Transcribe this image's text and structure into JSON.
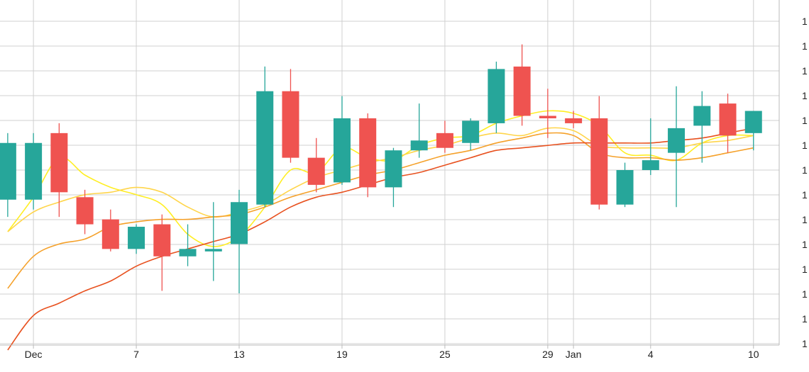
{
  "chart_data": {
    "type": "candlestick",
    "title": "",
    "xlabel": "",
    "ylabel": "",
    "grid": true,
    "y_tick_labels": [
      "1",
      "1",
      "1",
      "1",
      "1",
      "1",
      "1",
      "1",
      "1",
      "1",
      "1",
      "1",
      "1",
      "1"
    ],
    "x_tick_labels": [
      {
        "label": "Dec",
        "x": 1
      },
      {
        "label": "7",
        "x": 5
      },
      {
        "label": "13",
        "x": 9
      },
      {
        "label": "19",
        "x": 13
      },
      {
        "label": "25",
        "x": 17
      },
      {
        "label": "29",
        "x": 21
      },
      {
        "label": "Jan",
        "x": 22
      },
      {
        "label": "4",
        "x": 25
      },
      {
        "label": "10",
        "x": 29
      }
    ],
    "x_range": [
      -0.3,
      30.0
    ],
    "y_range": [
      0.0,
      14.0
    ],
    "candles": [
      {
        "x": 0,
        "open": 5.9,
        "high": 8.6,
        "low": 5.2,
        "close": 8.2
      },
      {
        "x": 1,
        "open": 5.9,
        "high": 8.6,
        "low": 5.5,
        "close": 8.2
      },
      {
        "x": 2,
        "open": 8.6,
        "high": 9.0,
        "low": 5.2,
        "close": 6.2
      },
      {
        "x": 3,
        "open": 6.0,
        "high": 6.3,
        "low": 4.5,
        "close": 4.9
      },
      {
        "x": 4,
        "open": 5.1,
        "high": 5.5,
        "low": 3.8,
        "close": 3.9
      },
      {
        "x": 5,
        "open": 3.9,
        "high": 4.9,
        "low": 3.7,
        "close": 4.8
      },
      {
        "x": 6,
        "open": 4.9,
        "high": 5.3,
        "low": 2.2,
        "close": 3.6
      },
      {
        "x": 7,
        "open": 3.6,
        "high": 4.9,
        "low": 3.2,
        "close": 3.9
      },
      {
        "x": 8,
        "open": 3.8,
        "high": 5.8,
        "low": 2.6,
        "close": 3.9
      },
      {
        "x": 9,
        "open": 4.1,
        "high": 6.3,
        "low": 2.1,
        "close": 5.8
      },
      {
        "x": 10,
        "open": 5.7,
        "high": 11.3,
        "low": 5.6,
        "close": 10.3
      },
      {
        "x": 11,
        "open": 10.3,
        "high": 11.2,
        "low": 7.4,
        "close": 7.6
      },
      {
        "x": 12,
        "open": 7.6,
        "high": 8.4,
        "low": 6.2,
        "close": 6.5
      },
      {
        "x": 13,
        "open": 6.6,
        "high": 10.1,
        "low": 6.5,
        "close": 9.2
      },
      {
        "x": 14,
        "open": 9.2,
        "high": 9.4,
        "low": 6.0,
        "close": 6.4
      },
      {
        "x": 15,
        "open": 6.4,
        "high": 8.0,
        "low": 5.6,
        "close": 7.9
      },
      {
        "x": 16,
        "open": 7.9,
        "high": 9.8,
        "low": 7.6,
        "close": 8.3
      },
      {
        "x": 17,
        "open": 8.6,
        "high": 9.1,
        "low": 7.8,
        "close": 8.0
      },
      {
        "x": 18,
        "open": 8.2,
        "high": 9.2,
        "low": 7.9,
        "close": 9.1
      },
      {
        "x": 19,
        "open": 9.0,
        "high": 11.5,
        "low": 8.6,
        "close": 11.2
      },
      {
        "x": 20,
        "open": 11.3,
        "high": 12.2,
        "low": 8.9,
        "close": 9.3
      },
      {
        "x": 21,
        "open": 9.3,
        "high": 10.4,
        "low": 8.4,
        "close": 9.2
      },
      {
        "x": 22,
        "open": 9.2,
        "high": 9.5,
        "low": 8.8,
        "close": 9.0
      },
      {
        "x": 23,
        "open": 9.2,
        "high": 10.1,
        "low": 5.5,
        "close": 5.7
      },
      {
        "x": 24,
        "open": 5.7,
        "high": 7.4,
        "low": 5.6,
        "close": 7.1
      },
      {
        "x": 25,
        "open": 7.1,
        "high": 9.2,
        "low": 6.9,
        "close": 7.5
      },
      {
        "x": 26,
        "open": 7.8,
        "high": 10.5,
        "low": 5.6,
        "close": 8.8
      },
      {
        "x": 27,
        "open": 8.9,
        "high": 10.3,
        "low": 7.4,
        "close": 9.7
      },
      {
        "x": 28,
        "open": 9.8,
        "high": 10.2,
        "low": 7.8,
        "close": 8.5
      },
      {
        "x": 29,
        "open": 8.6,
        "high": 9.5,
        "low": 7.9,
        "close": 9.5
      }
    ],
    "series": [
      {
        "color": "#ffee22",
        "x_start": 0,
        "values": [
          4.6,
          6.0,
          7.6,
          6.9,
          6.4,
          6.1,
          5.7,
          4.5,
          4.0,
          4.4,
          5.6,
          7.1,
          7.0,
          8.0,
          7.6,
          7.5,
          8.1,
          8.4,
          8.5,
          9.0,
          9.3,
          9.5,
          9.4,
          8.9,
          7.8,
          7.7,
          7.5,
          8.2,
          8.5,
          8.5
        ]
      },
      {
        "color": "#ffd54a",
        "x_start": 0,
        "values": [
          4.6,
          5.4,
          5.8,
          6.1,
          6.2,
          6.4,
          6.2,
          5.6,
          5.2,
          5.4,
          5.7,
          6.3,
          6.8,
          7.1,
          7.4,
          7.6,
          7.9,
          8.1,
          8.4,
          8.6,
          8.5,
          8.8,
          8.7,
          8.1,
          8.0,
          8.0,
          8.0,
          8.2,
          8.3,
          8.5
        ]
      },
      {
        "color": "#f5a12a",
        "x_start": 0,
        "values": [
          2.3,
          3.6,
          4.1,
          4.3,
          4.8,
          5.0,
          5.1,
          5.1,
          5.2,
          5.3,
          5.6,
          6.0,
          6.3,
          6.6,
          6.9,
          7.1,
          7.4,
          7.7,
          7.9,
          8.2,
          8.4,
          8.6,
          8.5,
          7.8,
          7.6,
          7.6,
          7.5,
          7.6,
          7.8,
          8.0
        ]
      },
      {
        "color": "#e8511f",
        "x_start": 0,
        "values": [
          -0.2,
          1.2,
          1.7,
          2.2,
          2.6,
          3.2,
          3.6,
          3.9,
          4.2,
          4.5,
          5.0,
          5.6,
          6.0,
          6.2,
          6.5,
          6.8,
          7.0,
          7.3,
          7.6,
          7.9,
          8.0,
          8.1,
          8.2,
          8.2,
          8.2,
          8.2,
          8.3,
          8.4,
          8.6,
          8.8
        ]
      }
    ],
    "colors": {
      "up": "#26a69a",
      "down": "#ef5350",
      "grid": "#d0d0d0",
      "axis": "#bbbbbb"
    }
  }
}
